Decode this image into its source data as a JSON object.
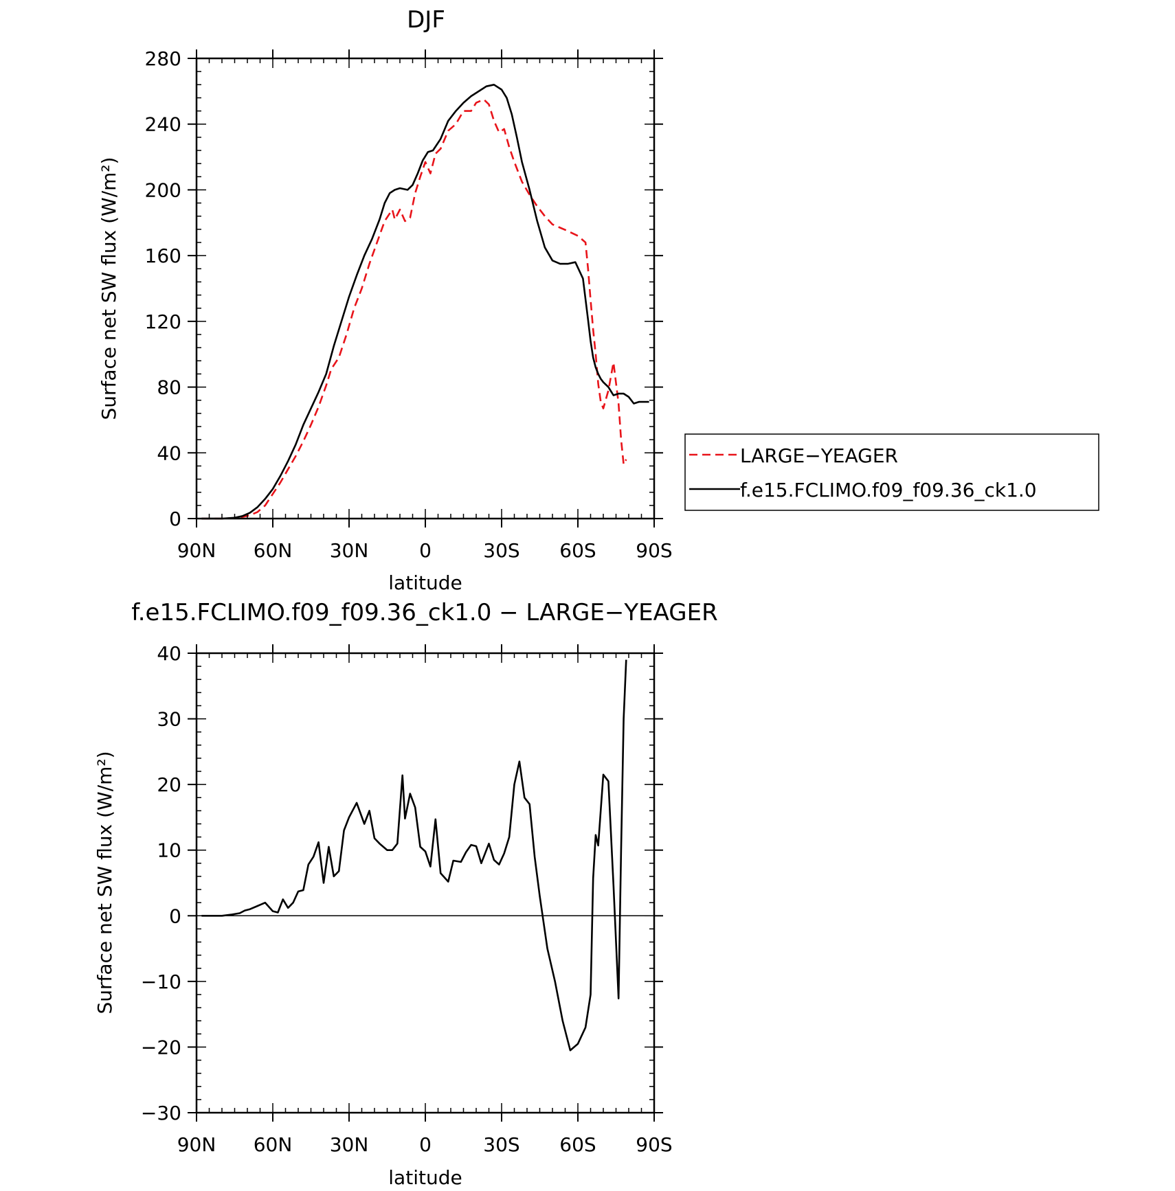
{
  "chart_data": [
    {
      "type": "line",
      "title": "DJF",
      "xlabel": "latitude",
      "ylabel": "Surface net SW flux (W/m²)",
      "xlim": [
        90,
        -90
      ],
      "ylim": [
        0,
        280
      ],
      "xticks": [
        90,
        60,
        30,
        0,
        -30,
        -60,
        -90
      ],
      "xtick_labels": [
        "90N",
        "60N",
        "30N",
        "0",
        "30S",
        "60S",
        "90S"
      ],
      "yticks": [
        0,
        40,
        80,
        120,
        160,
        200,
        240,
        280
      ],
      "ytick_labels": [
        "0",
        "40",
        "80",
        "120",
        "160",
        "200",
        "240",
        "280"
      ],
      "legend": {
        "placement": "right",
        "entries": [
          {
            "name": "LARGE−YEAGER",
            "color": "#e8141a",
            "dash": true
          },
          {
            "name": "f.e15.FCLIMO.f09_f09.36_ck1.0",
            "color": "#000000",
            "dash": false
          }
        ]
      },
      "series": [
        {
          "name": "LARGE−YEAGER",
          "color": "#e8141a",
          "dash": true,
          "x": [
            88,
            80,
            75,
            72,
            69,
            66,
            63,
            60,
            57,
            54,
            51,
            48,
            45,
            42,
            39,
            37,
            34,
            31,
            28,
            25,
            22,
            19,
            16,
            13,
            12,
            10,
            8,
            6,
            4,
            2,
            0,
            -2,
            -4,
            -6,
            -9,
            -12,
            -15,
            -18,
            -20,
            -23,
            -25,
            -27,
            -29,
            -31,
            -33,
            -35,
            -38,
            -41,
            -44,
            -47,
            -50,
            -53,
            -56,
            -60,
            -63,
            -64,
            -65,
            -66,
            -67,
            -68,
            -69,
            -70,
            -72,
            -74,
            -76,
            -77,
            -78,
            -79
          ],
          "y": [
            0,
            0,
            0.3,
            1,
            2,
            4,
            8,
            15,
            22,
            30,
            38,
            47,
            57,
            68,
            81,
            91,
            98,
            112,
            128,
            140,
            155,
            168,
            181,
            188,
            182,
            188,
            181,
            183,
            198,
            208,
            217,
            210,
            222,
            225,
            236,
            240,
            248,
            248,
            253,
            255,
            252,
            242,
            235,
            237,
            226,
            217,
            205,
            197,
            190,
            184,
            179,
            177,
            175,
            172,
            168,
            152,
            133,
            115,
            100,
            82,
            71,
            67,
            78,
            95,
            70,
            48,
            33,
            36
          ]
        },
        {
          "name": "f.e15.FCLIMO.f09_f09.36_ck1.0",
          "color": "#000000",
          "dash": false,
          "x": [
            88,
            80,
            75,
            72,
            69,
            66,
            63,
            60,
            57,
            54,
            51,
            48,
            45,
            42,
            39,
            36,
            33,
            30,
            27,
            24,
            21,
            18,
            16,
            14,
            12,
            10,
            7,
            5,
            3,
            1,
            -1,
            -3,
            -6,
            -9,
            -12,
            -15,
            -18,
            -21,
            -24,
            -27,
            -30,
            -32,
            -34,
            -36,
            -38,
            -41,
            -44,
            -47,
            -50,
            -53,
            -56,
            -59,
            -62,
            -64,
            -65,
            -66,
            -67,
            -68,
            -69,
            -70,
            -72,
            -74,
            -76,
            -78,
            -80,
            -82,
            -84,
            -86,
            -88
          ],
          "y": [
            0,
            0,
            0.5,
            1.5,
            3.5,
            7,
            12,
            18,
            26,
            35,
            45,
            57,
            67,
            77,
            88,
            105,
            120,
            135,
            148,
            160,
            170,
            182,
            192,
            198,
            200,
            201,
            200,
            203,
            210,
            218,
            223,
            224,
            231,
            242,
            248,
            253,
            257,
            260,
            263,
            264,
            261,
            256,
            246,
            232,
            217,
            200,
            181,
            165,
            157,
            155,
            155,
            156,
            146,
            121,
            108,
            98,
            92,
            88,
            85,
            83,
            80,
            75,
            76,
            76,
            74,
            70,
            71,
            71,
            71
          ]
        }
      ]
    },
    {
      "type": "line",
      "title": "f.e15.FCLIMO.f09_f09.36_ck1.0 − LARGE−YEAGER",
      "xlabel": "latitude",
      "ylabel": "Surface net SW flux (W/m²)",
      "xlim": [
        90,
        -90
      ],
      "ylim": [
        -30,
        40
      ],
      "xticks": [
        90,
        60,
        30,
        0,
        -30,
        -60,
        -90
      ],
      "xtick_labels": [
        "90N",
        "60N",
        "30N",
        "0",
        "30S",
        "60S",
        "90S"
      ],
      "yticks": [
        -30,
        -20,
        -10,
        0,
        10,
        20,
        30,
        40
      ],
      "ytick_labels": [
        "−30",
        "−20",
        "−10",
        "0",
        "10",
        "20",
        "30",
        "40"
      ],
      "series": [
        {
          "color": "#000000",
          "dash": false,
          "x": [
            88,
            80,
            76,
            73,
            71,
            69,
            66,
            63,
            60,
            58,
            56,
            54,
            52,
            50,
            48,
            46,
            44,
            42,
            40,
            38,
            36,
            34,
            32,
            30,
            27,
            24,
            22,
            20,
            18,
            15,
            13,
            11,
            9,
            8,
            6,
            4,
            2,
            0,
            -2,
            -4,
            -6,
            -9,
            -11,
            -14,
            -16,
            -18,
            -20,
            -22,
            -25,
            -27,
            -29,
            -31,
            -33,
            -35,
            -37,
            -39,
            -41,
            -43,
            -45,
            -48,
            -51,
            -54,
            -57,
            -60,
            -63,
            -65,
            -66,
            -67,
            -68,
            -70,
            -72,
            -74,
            -76,
            -77,
            -78,
            -79
          ],
          "y": [
            0,
            0,
            0.2,
            0.4,
            0.8,
            1.0,
            1.5,
            2.0,
            0.7,
            0.5,
            2.5,
            1.2,
            2.0,
            3.7,
            3.9,
            7.8,
            9,
            11.2,
            5,
            10.5,
            6,
            6.8,
            13,
            15,
            17.2,
            14,
            16,
            11.8,
            11,
            10,
            10,
            11,
            21.4,
            14.8,
            18.6,
            16.5,
            10.5,
            9.8,
            7.5,
            14.7,
            6.5,
            5.2,
            8.4,
            8.2,
            9.7,
            10.8,
            10.6,
            8,
            11,
            8.5,
            7.8,
            9.5,
            12,
            20,
            23.5,
            18,
            17,
            9,
            3,
            -5,
            -10,
            -16,
            -20.5,
            -19.5,
            -17,
            -12,
            5.7,
            12.3,
            10.7,
            21.5,
            20.5,
            4.7,
            -12.6,
            10,
            30,
            39
          ]
        }
      ]
    }
  ]
}
